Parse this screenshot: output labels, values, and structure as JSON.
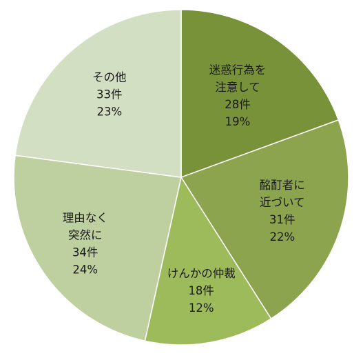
{
  "chart_data": {
    "type": "pie",
    "title": "",
    "start_angle_deg": 0,
    "direction": "clockwise",
    "slices": [
      {
        "name_lines": [
          "迷惑行為を",
          "注意して"
        ],
        "count_label": "28件",
        "percent_label": "19%",
        "value": 28,
        "color": "#78923a"
      },
      {
        "name_lines": [
          "酩酊者に",
          "近づいて"
        ],
        "count_label": "31件",
        "percent_label": "22%",
        "value": 31,
        "color": "#8ba44d"
      },
      {
        "name_lines": [
          "けんかの仲裁"
        ],
        "count_label": "18件",
        "percent_label": "12%",
        "value": 18,
        "color": "#9dbb5a"
      },
      {
        "name_lines": [
          "理由なく",
          "突然に"
        ],
        "count_label": "34件",
        "percent_label": "24%",
        "value": 34,
        "color": "#bfd0a0"
      },
      {
        "name_lines": [
          "その他"
        ],
        "count_label": "33件",
        "percent_label": "23%",
        "value": 33,
        "color": "#d3dfc2"
      }
    ]
  }
}
